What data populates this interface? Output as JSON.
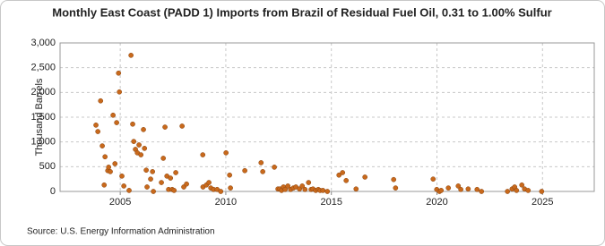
{
  "chart_data": {
    "type": "scatter",
    "title": "Monthly East Coast (PADD 1) Imports from Brazil of Residual Fuel Oil, 0.31 to 1.00% Sulfur",
    "y_label": "Thousand Barrels",
    "source": "Source: U.S. Energy Information Administration",
    "color": "#c8691c",
    "grid": true,
    "xlim": [
      2002.15,
      2027.45
    ],
    "xticks": [
      2005,
      2010,
      2015,
      2020,
      2025
    ],
    "ylim": [
      0,
      3000
    ],
    "yticks": [
      0,
      500,
      {
        "value": 1000,
        "label": "1,000"
      },
      {
        "value": 1500,
        "label": "1,500"
      },
      {
        "value": 2000,
        "label": "2,000"
      },
      {
        "value": 2500,
        "label": "2,500"
      },
      {
        "value": 3000,
        "label": "3,000"
      }
    ],
    "x": [
      2003.85,
      2003.94,
      2004.07,
      2004.15,
      2004.28,
      2004.24,
      2004.41,
      2004.45,
      2004.53,
      2004.66,
      2004.75,
      2004.83,
      2004.92,
      2004.96,
      2005.08,
      2005.17,
      2005.42,
      2005.51,
      2005.59,
      2005.64,
      2005.72,
      2005.81,
      2005.89,
      2005.98,
      2006.1,
      2006.15,
      2006.23,
      2006.27,
      2006.44,
      2006.53,
      2006.57,
      2006.95,
      2007.04,
      2007.12,
      2007.21,
      2007.29,
      2007.38,
      2007.46,
      2007.55,
      2007.63,
      2007.93,
      2008.01,
      2008.14,
      2008.91,
      2008.92,
      2009.08,
      2009.2,
      2009.29,
      2009.42,
      2009.59,
      2009.76,
      2010.01,
      2010.18,
      2010.22,
      2010.9,
      2011.67,
      2011.75,
      2012.3,
      2012.47,
      2012.56,
      2012.64,
      2012.73,
      2012.81,
      2012.94,
      2013.07,
      2013.2,
      2013.32,
      2013.49,
      2013.62,
      2013.75,
      2013.92,
      2014.04,
      2014.13,
      2014.26,
      2014.38,
      2014.47,
      2014.6,
      2014.81,
      2015.36,
      2015.53,
      2015.7,
      2016.17,
      2016.59,
      2017.95,
      2018.04,
      2019.82,
      2019.99,
      2020.12,
      2020.2,
      2020.54,
      2021.01,
      2021.13,
      2021.48,
      2021.9,
      2022.11,
      2023.34,
      2023.56,
      2023.68,
      2023.77,
      2024.02,
      2024.15,
      2024.32,
      2024.96
    ],
    "values": [
      1340,
      1210,
      1830,
      920,
      700,
      130,
      420,
      490,
      400,
      1540,
      560,
      1390,
      2390,
      2010,
      310,
      110,
      20,
      2750,
      1360,
      1010,
      850,
      780,
      940,
      740,
      1250,
      870,
      430,
      90,
      250,
      400,
      0,
      180,
      670,
      1300,
      310,
      40,
      270,
      40,
      20,
      380,
      1320,
      90,
      150,
      740,
      90,
      130,
      180,
      70,
      40,
      40,
      0,
      780,
      330,
      70,
      420,
      580,
      400,
      490,
      50,
      50,
      20,
      90,
      40,
      110,
      40,
      70,
      90,
      50,
      110,
      40,
      180,
      40,
      50,
      20,
      40,
      20,
      20,
      0,
      330,
      380,
      220,
      50,
      290,
      240,
      70,
      250,
      40,
      0,
      20,
      70,
      110,
      40,
      50,
      40,
      0,
      0,
      50,
      90,
      20,
      130,
      50,
      20,
      0
    ]
  }
}
